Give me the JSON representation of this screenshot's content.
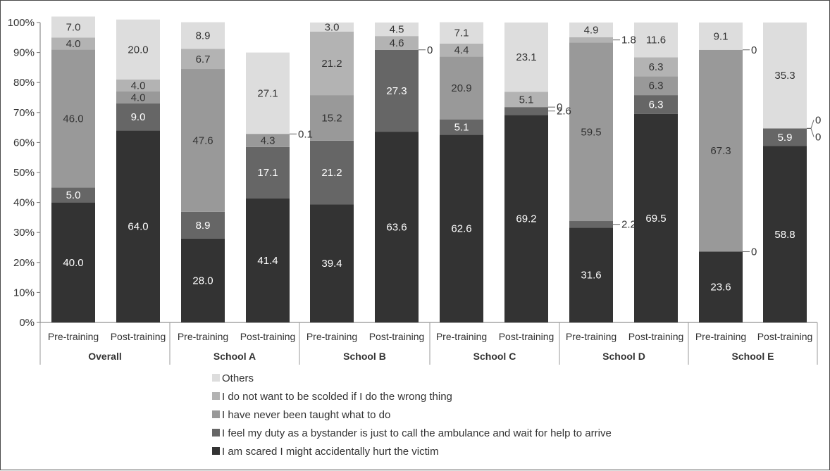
{
  "chart_data": {
    "type": "bar",
    "stacked": true,
    "y_axis": {
      "ticks": [
        "0%",
        "10%",
        "20%",
        "30%",
        "40%",
        "50%",
        "60%",
        "70%",
        "80%",
        "90%",
        "100%"
      ],
      "ylim": [
        0,
        100
      ]
    },
    "groups": [
      {
        "name": "Overall",
        "categories": [
          "Pre-training",
          "Post-training"
        ]
      },
      {
        "name": "School A",
        "categories": [
          "Pre-training",
          "Post-training"
        ]
      },
      {
        "name": "School B",
        "categories": [
          "Pre-training",
          "Post-training"
        ]
      },
      {
        "name": "School C",
        "categories": [
          "Pre-training",
          "Post-training"
        ]
      },
      {
        "name": "School D",
        "categories": [
          "Pre-training",
          "Post-training"
        ]
      },
      {
        "name": "School E",
        "categories": [
          "Pre-training",
          "Post-training"
        ]
      }
    ],
    "series": [
      {
        "name": "I am scared I might accidentally hurt the victim",
        "color": "#333333",
        "label_color": "#ffffff",
        "values": [
          40.0,
          64.0,
          28.0,
          41.4,
          39.4,
          63.6,
          62.6,
          69.2,
          31.6,
          69.5,
          23.6,
          58.8
        ],
        "labels": [
          "40.0",
          "64.0",
          "28.0",
          "41.4",
          "39.4",
          "63.6",
          "62.6",
          "69.2",
          "31.6",
          "69.5",
          "23.6",
          "58.8"
        ]
      },
      {
        "name": "I feel my duty as a bystander is just to call the ambulance and wait for help to arrive",
        "color": "#666666",
        "label_color": "#ffffff",
        "values": [
          5.0,
          9.0,
          8.9,
          17.1,
          21.2,
          27.3,
          5.1,
          2.6,
          2.2,
          6.3,
          0,
          5.9
        ],
        "labels": [
          "5.0",
          "9.0",
          "8.9",
          "17.1",
          "21.2",
          "27.3",
          "5.1",
          "2.6",
          "2.2",
          "6.3",
          "0",
          "5.9"
        ]
      },
      {
        "name": "I have never been taught what to do",
        "color": "#999999",
        "label_color": "#333333",
        "values": [
          46.0,
          4.0,
          47.6,
          4.3,
          15.2,
          0,
          20.9,
          0,
          59.5,
          6.3,
          67.3,
          0
        ],
        "labels": [
          "46.0",
          "4.0",
          "47.6",
          "4.3",
          "15.2",
          "0",
          "20.9",
          "0",
          "59.5",
          "6.3",
          "67.3",
          "0"
        ]
      },
      {
        "name": "I do not want to be scolded if I do the wrong thing",
        "color": "#b3b3b3",
        "label_color": "#333333",
        "values": [
          4.0,
          4.0,
          6.7,
          0.1,
          21.2,
          4.6,
          4.4,
          5.1,
          1.8,
          6.3,
          0,
          0
        ],
        "labels": [
          "4.0",
          "4.0",
          "6.7",
          "0.1",
          "21.2",
          "4.6",
          "4.4",
          "5.1",
          "1.8",
          "6.3",
          "0",
          "0"
        ]
      },
      {
        "name": "Others",
        "color": "#dddddd",
        "label_color": "#333333",
        "values": [
          7.0,
          20.0,
          8.9,
          27.1,
          3.0,
          4.5,
          7.1,
          23.1,
          4.9,
          11.6,
          9.1,
          35.3
        ],
        "labels": [
          "7.0",
          "20.0",
          "8.9",
          "27.1",
          "3.0",
          "4.5",
          "7.1",
          "23.1",
          "4.9",
          "11.6",
          "9.1",
          "35.3"
        ]
      }
    ],
    "legend_order": [
      4,
      3,
      2,
      1,
      0
    ],
    "legend_position": "bottom-center"
  }
}
